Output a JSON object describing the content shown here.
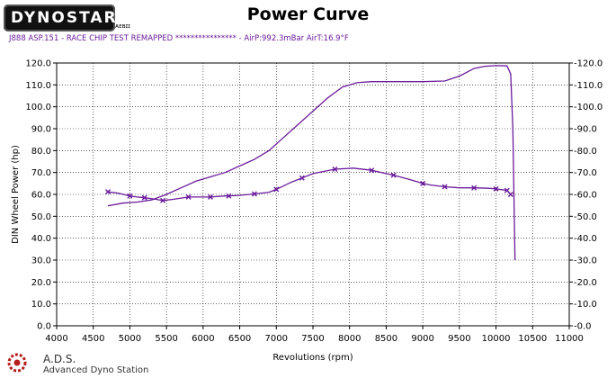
{
  "header": {
    "logo_text": "DYNOSTAR",
    "logo_tail": "ᴀᴇʙɪɪ",
    "title": "Power Curve",
    "subtitle": "J888 ASP.151 - RACE  CHIP TEST  REMAPPED  ****************  - AirP:992.3mBar AirT:16.9°F"
  },
  "footer": {
    "brand": "A.D.S.",
    "tagline": "Advanced Dyno Station"
  },
  "colors": {
    "series": "#6a1b9a",
    "grid": "#000000"
  },
  "chart_data": {
    "type": "line",
    "xlabel": "Revolutions (rpm)",
    "ylabel": "DIN Wheel Power (hp)",
    "xlim": [
      4000,
      11000
    ],
    "ylim": [
      0,
      120
    ],
    "x_ticks": [
      4000,
      4500,
      5000,
      5500,
      6000,
      6500,
      7000,
      7500,
      8000,
      8500,
      9000,
      9500,
      10000,
      10500,
      11000
    ],
    "y_ticks": [
      "0.0",
      "10.0",
      "20.0",
      "30.0",
      "40.0",
      "50.0",
      "60.0",
      "70.0",
      "80.0",
      "90.0",
      "100.0",
      "110.0",
      "120.0"
    ],
    "y_ticks_right": [
      "-0.0",
      "-10.0",
      "-20.0",
      "-30.0",
      "-40.0",
      "-50.0",
      "-60.0",
      "-70.0",
      "-80.0",
      "-90.0",
      "-100.0",
      "-110.0",
      "-120.0"
    ],
    "grid": true,
    "series": [
      {
        "marker": "none",
        "points": [
          [
            4700,
            54.8
          ],
          [
            4900,
            56
          ],
          [
            5100,
            56.5
          ],
          [
            5300,
            57.5
          ],
          [
            5500,
            60
          ],
          [
            5700,
            63
          ],
          [
            5900,
            66
          ],
          [
            6100,
            68
          ],
          [
            6300,
            70
          ],
          [
            6500,
            73
          ],
          [
            6700,
            76
          ],
          [
            6900,
            80
          ],
          [
            7100,
            86
          ],
          [
            7300,
            92
          ],
          [
            7500,
            98
          ],
          [
            7700,
            104
          ],
          [
            7900,
            109
          ],
          [
            8100,
            111
          ],
          [
            8300,
            111.5
          ],
          [
            8500,
            111.5
          ],
          [
            8700,
            111.5
          ],
          [
            9000,
            111.5
          ],
          [
            9300,
            111.8
          ],
          [
            9500,
            114
          ],
          [
            9700,
            117.5
          ],
          [
            9850,
            118.5
          ],
          [
            10000,
            118.8
          ],
          [
            10150,
            118.7
          ],
          [
            10200,
            115
          ],
          [
            10230,
            90
          ],
          [
            10260,
            30
          ]
        ]
      },
      {
        "marker": "x",
        "points": [
          [
            4700,
            61.2
          ],
          [
            4850,
            60.5
          ],
          [
            5000,
            59.3
          ],
          [
            5100,
            58.8
          ],
          [
            5200,
            58.5
          ],
          [
            5350,
            57.8
          ],
          [
            5450,
            57.2
          ],
          [
            5600,
            57.8
          ],
          [
            5800,
            58.8
          ],
          [
            6000,
            58.8
          ],
          [
            6100,
            58.8
          ],
          [
            6300,
            59.3
          ],
          [
            6350,
            59.3
          ],
          [
            6500,
            59.6
          ],
          [
            6700,
            60.2
          ],
          [
            6900,
            61
          ],
          [
            7000,
            62.3
          ],
          [
            7200,
            65.5
          ],
          [
            7350,
            67.5
          ],
          [
            7500,
            69.5
          ],
          [
            7800,
            71.5
          ],
          [
            8050,
            72
          ],
          [
            8300,
            71
          ],
          [
            8500,
            69.5
          ],
          [
            8600,
            68.8
          ],
          [
            8800,
            67
          ],
          [
            9000,
            65
          ],
          [
            9100,
            64.3
          ],
          [
            9300,
            63.5
          ],
          [
            9500,
            63
          ],
          [
            9700,
            63
          ],
          [
            9900,
            62.8
          ],
          [
            10000,
            62.5
          ],
          [
            10150,
            61.8
          ],
          [
            10200,
            60
          ]
        ]
      }
    ]
  }
}
